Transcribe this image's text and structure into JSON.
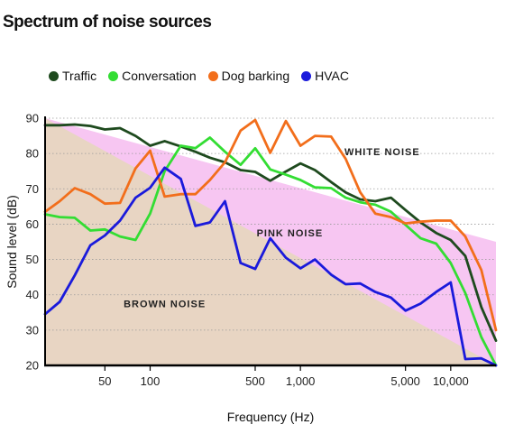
{
  "chart_data": {
    "type": "line",
    "title": "Spectrum of noise sources",
    "xlabel": "Frequency (Hz)",
    "ylabel": "Sound level (dB)",
    "x_scale": "log",
    "xlim": [
      20,
      20000
    ],
    "ylim": [
      20,
      90
    ],
    "y_ticks": [
      20,
      30,
      40,
      50,
      60,
      70,
      80,
      90
    ],
    "x_ticks": [
      {
        "value": 50,
        "label": "50"
      },
      {
        "value": 100,
        "label": "100"
      },
      {
        "value": 500,
        "label": "500"
      },
      {
        "value": 1000,
        "label": "1,000"
      },
      {
        "value": 5000,
        "label": "5,000"
      },
      {
        "value": 10000,
        "label": "10,000"
      }
    ],
    "legend_position": "top-left",
    "bands": [
      {
        "name": "WHITE NOISE",
        "label": "WHITE NOISE",
        "color": "#ffffff",
        "label_x": 3500,
        "label_y": 79.5
      },
      {
        "name": "PINK NOISE",
        "label": "PINK NOISE",
        "color": "#f7c6f2",
        "upper": [
          [
            20,
            90
          ],
          [
            20000,
            55
          ]
        ],
        "label_x": 850,
        "label_y": 56.5
      },
      {
        "name": "BROWN NOISE",
        "label": "BROWN NOISE",
        "color": "#e8d5c3",
        "upper": [
          [
            20,
            90
          ],
          [
            20000,
            20
          ]
        ],
        "label_x": 125,
        "label_y": 36.5
      }
    ],
    "series": [
      {
        "name": "Traffic",
        "color": "#1e4a1e",
        "points": [
          [
            20,
            88
          ],
          [
            25,
            88
          ],
          [
            31.5,
            88.2
          ],
          [
            40,
            87.8
          ],
          [
            50,
            86.8
          ],
          [
            63,
            87.2
          ],
          [
            80,
            85
          ],
          [
            100,
            82.2
          ],
          [
            125,
            83.5
          ],
          [
            160,
            82
          ],
          [
            200,
            80.5
          ],
          [
            250,
            78.8
          ],
          [
            315,
            77.5
          ],
          [
            400,
            75.3
          ],
          [
            500,
            74.8
          ],
          [
            630,
            72.3
          ],
          [
            800,
            74.9
          ],
          [
            1000,
            77.2
          ],
          [
            1250,
            75.3
          ],
          [
            1600,
            71.9
          ],
          [
            2000,
            69
          ],
          [
            2500,
            67
          ],
          [
            3150,
            66.5
          ],
          [
            4000,
            67.5
          ],
          [
            5000,
            64
          ],
          [
            6300,
            60.5
          ],
          [
            8000,
            57.5
          ],
          [
            10000,
            55.5
          ],
          [
            12500,
            51
          ],
          [
            16000,
            36.5
          ],
          [
            20000,
            27
          ]
        ]
      },
      {
        "name": "Conversation",
        "color": "#33dd33",
        "points": [
          [
            20,
            62.8
          ],
          [
            25,
            62
          ],
          [
            31.5,
            61.8
          ],
          [
            40,
            58.2
          ],
          [
            50,
            58.5
          ],
          [
            63,
            56.5
          ],
          [
            80,
            55.5
          ],
          [
            100,
            63
          ],
          [
            125,
            75
          ],
          [
            160,
            82.2
          ],
          [
            200,
            81.5
          ],
          [
            250,
            84.5
          ],
          [
            315,
            80.5
          ],
          [
            400,
            76.8
          ],
          [
            500,
            81.5
          ],
          [
            630,
            75.5
          ],
          [
            800,
            74
          ],
          [
            1000,
            72.5
          ],
          [
            1250,
            70.4
          ],
          [
            1600,
            70.2
          ],
          [
            2000,
            67.5
          ],
          [
            2500,
            66.2
          ],
          [
            3150,
            65.5
          ],
          [
            4000,
            63.5
          ],
          [
            5000,
            59.8
          ],
          [
            6300,
            56
          ],
          [
            8000,
            54.5
          ],
          [
            10000,
            49
          ],
          [
            12500,
            40.5
          ],
          [
            16000,
            28
          ],
          [
            20000,
            20
          ]
        ]
      },
      {
        "name": "Dog barking",
        "color": "#f26e1b",
        "points": [
          [
            20,
            63.5
          ],
          [
            25,
            66.5
          ],
          [
            31.5,
            70.2
          ],
          [
            40,
            68.5
          ],
          [
            50,
            65.8
          ],
          [
            63,
            66
          ],
          [
            80,
            75.8
          ],
          [
            100,
            80.8
          ],
          [
            125,
            67.8
          ],
          [
            160,
            68.5
          ],
          [
            200,
            68.5
          ],
          [
            250,
            72.5
          ],
          [
            315,
            77.5
          ],
          [
            400,
            86.5
          ],
          [
            500,
            89.5
          ],
          [
            630,
            80.2
          ],
          [
            800,
            89.2
          ],
          [
            1000,
            82.2
          ],
          [
            1250,
            85
          ],
          [
            1600,
            84.8
          ],
          [
            2000,
            78.5
          ],
          [
            2500,
            69
          ],
          [
            3150,
            63
          ],
          [
            4000,
            62
          ],
          [
            5000,
            60.2
          ],
          [
            6300,
            60.7
          ],
          [
            8000,
            61
          ],
          [
            10000,
            61
          ],
          [
            12500,
            56.5
          ],
          [
            16000,
            47
          ],
          [
            20000,
            30
          ]
        ]
      },
      {
        "name": "HVAC",
        "color": "#1a1adb",
        "points": [
          [
            20,
            34.5
          ],
          [
            25,
            38
          ],
          [
            31.5,
            45.5
          ],
          [
            40,
            54
          ],
          [
            50,
            56.8
          ],
          [
            63,
            61
          ],
          [
            80,
            67.5
          ],
          [
            100,
            70.3
          ],
          [
            125,
            76
          ],
          [
            160,
            72.8
          ],
          [
            200,
            59.5
          ],
          [
            250,
            60.5
          ],
          [
            315,
            66.5
          ],
          [
            400,
            49
          ],
          [
            500,
            47.3
          ],
          [
            630,
            56
          ],
          [
            800,
            50.5
          ],
          [
            1000,
            47.5
          ],
          [
            1250,
            50
          ],
          [
            1600,
            45.7
          ],
          [
            2000,
            43
          ],
          [
            2500,
            43.2
          ],
          [
            3150,
            40.8
          ],
          [
            4000,
            39.2
          ],
          [
            5000,
            35.5
          ],
          [
            6300,
            37.5
          ],
          [
            8000,
            40.8
          ],
          [
            10000,
            43.5
          ],
          [
            12500,
            21.8
          ],
          [
            16000,
            22
          ],
          [
            20000,
            20
          ]
        ]
      }
    ]
  }
}
